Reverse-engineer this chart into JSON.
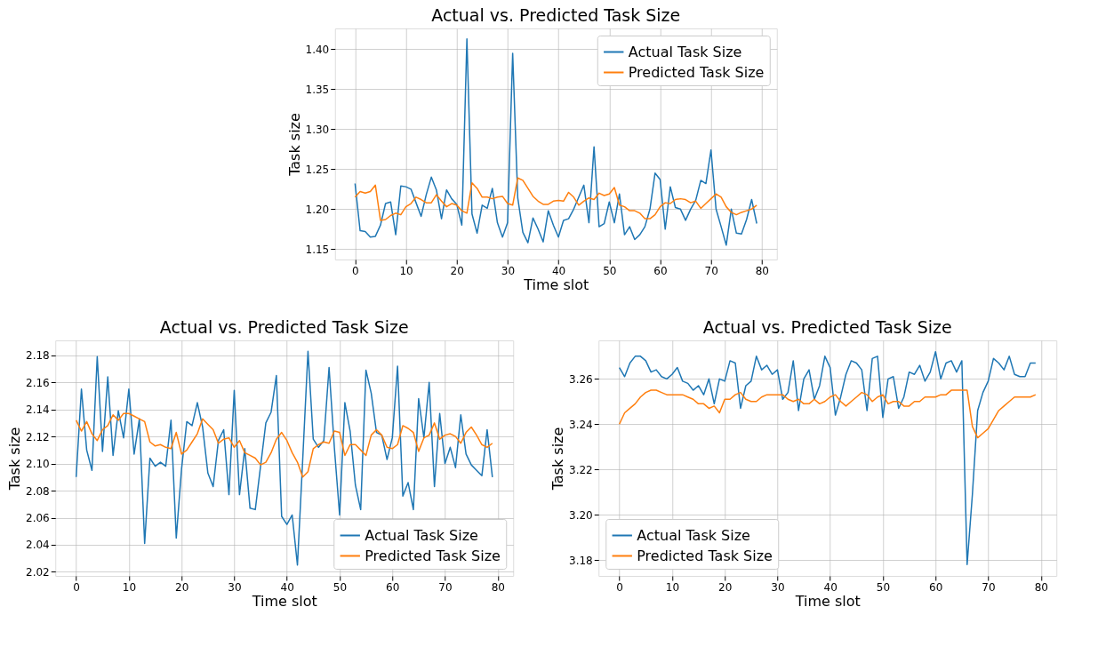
{
  "chart_data": [
    {
      "type": "line",
      "title": "Actual vs. Predicted Task Size",
      "xlabel": "Time slot",
      "ylabel": "Task size",
      "x": [
        0,
        1,
        2,
        3,
        4,
        5,
        6,
        7,
        8,
        9,
        10,
        11,
        12,
        13,
        14,
        15,
        16,
        17,
        18,
        19,
        20,
        21,
        22,
        23,
        24,
        25,
        26,
        27,
        28,
        29,
        30,
        31,
        32,
        33,
        34,
        35,
        36,
        37,
        38,
        39,
        40,
        41,
        42,
        43,
        44,
        45,
        46,
        47,
        48,
        49,
        50,
        51,
        52,
        53,
        54,
        55,
        56,
        57,
        58,
        59,
        60,
        61,
        62,
        63,
        64,
        65,
        66,
        67,
        68,
        69,
        70,
        71,
        72,
        73,
        74,
        75,
        76,
        77,
        78,
        79
      ],
      "series": [
        {
          "name": "Actual Task Size",
          "color": "#1f77b4",
          "values": [
            1.232,
            1.173,
            1.172,
            1.165,
            1.166,
            1.18,
            1.207,
            1.209,
            1.168,
            1.229,
            1.228,
            1.225,
            1.208,
            1.191,
            1.218,
            1.24,
            1.224,
            1.188,
            1.224,
            1.213,
            1.206,
            1.18,
            1.413,
            1.194,
            1.17,
            1.205,
            1.201,
            1.226,
            1.183,
            1.165,
            1.183,
            1.395,
            1.214,
            1.171,
            1.158,
            1.189,
            1.175,
            1.159,
            1.198,
            1.18,
            1.165,
            1.186,
            1.188,
            1.2,
            1.215,
            1.23,
            1.183,
            1.278,
            1.178,
            1.182,
            1.209,
            1.183,
            1.219,
            1.168,
            1.178,
            1.162,
            1.168,
            1.178,
            1.2,
            1.245,
            1.237,
            1.175,
            1.228,
            1.202,
            1.2,
            1.186,
            1.2,
            1.211,
            1.236,
            1.232,
            1.274,
            1.2,
            1.178,
            1.155,
            1.2,
            1.17,
            1.169,
            1.187,
            1.212,
            1.182
          ]
        },
        {
          "name": "Predicted Task Size",
          "color": "#ff7f0e",
          "values": [
            1.215,
            1.222,
            1.22,
            1.222,
            1.23,
            1.186,
            1.187,
            1.192,
            1.195,
            1.193,
            1.203,
            1.207,
            1.215,
            1.212,
            1.208,
            1.208,
            1.218,
            1.21,
            1.203,
            1.207,
            1.205,
            1.198,
            1.195,
            1.233,
            1.226,
            1.215,
            1.215,
            1.213,
            1.215,
            1.216,
            1.207,
            1.205,
            1.239,
            1.236,
            1.226,
            1.216,
            1.21,
            1.206,
            1.206,
            1.21,
            1.211,
            1.21,
            1.221,
            1.215,
            1.205,
            1.21,
            1.214,
            1.212,
            1.22,
            1.217,
            1.219,
            1.227,
            1.205,
            1.203,
            1.198,
            1.198,
            1.195,
            1.188,
            1.188,
            1.193,
            1.203,
            1.208,
            1.207,
            1.212,
            1.213,
            1.212,
            1.208,
            1.21,
            1.201,
            1.207,
            1.213,
            1.219,
            1.215,
            1.203,
            1.196,
            1.193,
            1.196,
            1.198,
            1.2,
            1.205
          ]
        }
      ],
      "xlim": [
        -3.95,
        82.95
      ],
      "xticks": [
        0,
        10,
        20,
        30,
        40,
        50,
        60,
        70,
        80
      ],
      "ylim": [
        1.137,
        1.426
      ],
      "yticks": [
        1.15,
        {
          "value": 1.2,
          "label": "1.20"
        },
        1.25,
        {
          "value": 1.3,
          "label": "1.30"
        },
        1.35,
        {
          "value": 1.4,
          "label": "1.40"
        }
      ],
      "grid": true,
      "legend": "top right"
    },
    {
      "type": "line",
      "title": "Actual vs. Predicted Task Size",
      "xlabel": "Time slot",
      "ylabel": "Task size",
      "x": [
        0,
        1,
        2,
        3,
        4,
        5,
        6,
        7,
        8,
        9,
        10,
        11,
        12,
        13,
        14,
        15,
        16,
        17,
        18,
        19,
        20,
        21,
        22,
        23,
        24,
        25,
        26,
        27,
        28,
        29,
        30,
        31,
        32,
        33,
        34,
        35,
        36,
        37,
        38,
        39,
        40,
        41,
        42,
        43,
        44,
        45,
        46,
        47,
        48,
        49,
        50,
        51,
        52,
        53,
        54,
        55,
        56,
        57,
        58,
        59,
        60,
        61,
        62,
        63,
        64,
        65,
        66,
        67,
        68,
        69,
        70,
        71,
        72,
        73,
        74,
        75,
        76,
        77,
        78,
        79
      ],
      "series": [
        {
          "name": "Actual Task Size",
          "color": "#1f77b4",
          "values": [
            2.09,
            2.155,
            2.11,
            2.095,
            2.179,
            2.109,
            2.164,
            2.106,
            2.139,
            2.119,
            2.155,
            2.107,
            2.133,
            2.041,
            2.104,
            2.098,
            2.101,
            2.098,
            2.132,
            2.045,
            2.096,
            2.131,
            2.128,
            2.145,
            2.127,
            2.093,
            2.083,
            2.117,
            2.125,
            2.077,
            2.154,
            2.077,
            2.111,
            2.067,
            2.066,
            2.098,
            2.13,
            2.138,
            2.165,
            2.061,
            2.055,
            2.062,
            2.025,
            2.103,
            2.183,
            2.118,
            2.112,
            2.117,
            2.171,
            2.112,
            2.062,
            2.145,
            2.124,
            2.084,
            2.066,
            2.169,
            2.152,
            2.123,
            2.121,
            2.103,
            2.119,
            2.172,
            2.076,
            2.086,
            2.066,
            2.148,
            2.119,
            2.16,
            2.083,
            2.137,
            2.1,
            2.112,
            2.097,
            2.136,
            2.107,
            2.099,
            2.095,
            2.091,
            2.125,
            2.09
          ]
        },
        {
          "name": "Predicted Task Size",
          "color": "#ff7f0e",
          "values": [
            2.132,
            2.124,
            2.131,
            2.122,
            2.117,
            2.125,
            2.128,
            2.136,
            2.132,
            2.137,
            2.137,
            2.135,
            2.133,
            2.131,
            2.116,
            2.113,
            2.114,
            2.112,
            2.111,
            2.123,
            2.107,
            2.11,
            2.116,
            2.122,
            2.133,
            2.129,
            2.125,
            2.115,
            2.118,
            2.119,
            2.112,
            2.117,
            2.108,
            2.106,
            2.104,
            2.099,
            2.101,
            2.108,
            2.118,
            2.123,
            2.117,
            2.108,
            2.101,
            2.09,
            2.094,
            2.111,
            2.114,
            2.116,
            2.115,
            2.124,
            2.123,
            2.106,
            2.114,
            2.114,
            2.11,
            2.106,
            2.121,
            2.125,
            2.121,
            2.112,
            2.111,
            2.114,
            2.128,
            2.126,
            2.123,
            2.109,
            2.119,
            2.121,
            2.13,
            2.118,
            2.121,
            2.122,
            2.12,
            2.115,
            2.123,
            2.127,
            2.121,
            2.114,
            2.112,
            2.115
          ]
        }
      ],
      "xlim": [
        -3.95,
        82.95
      ],
      "xticks": [
        0,
        10,
        20,
        30,
        40,
        50,
        60,
        70,
        80
      ],
      "ylim": [
        2.017,
        2.191
      ],
      "yticks": [
        2.02,
        2.04,
        2.06,
        2.08,
        {
          "value": 2.1,
          "label": "2.10"
        },
        2.12,
        2.14,
        2.16,
        2.18
      ],
      "grid": true,
      "legend": "bottom right"
    },
    {
      "type": "line",
      "title": "Actual vs. Predicted Task Size",
      "xlabel": "Time slot",
      "ylabel": "Task size",
      "x": [
        0,
        1,
        2,
        3,
        4,
        5,
        6,
        7,
        8,
        9,
        10,
        11,
        12,
        13,
        14,
        15,
        16,
        17,
        18,
        19,
        20,
        21,
        22,
        23,
        24,
        25,
        26,
        27,
        28,
        29,
        30,
        31,
        32,
        33,
        34,
        35,
        36,
        37,
        38,
        39,
        40,
        41,
        42,
        43,
        44,
        45,
        46,
        47,
        48,
        49,
        50,
        51,
        52,
        53,
        54,
        55,
        56,
        57,
        58,
        59,
        60,
        61,
        62,
        63,
        64,
        65,
        66,
        67,
        68,
        69,
        70,
        71,
        72,
        73,
        74,
        75,
        76,
        77,
        78,
        79
      ],
      "series": [
        {
          "name": "Actual Task Size",
          "color": "#1f77b4",
          "values": [
            3.265,
            3.261,
            3.267,
            3.27,
            3.27,
            3.268,
            3.263,
            3.264,
            3.261,
            3.26,
            3.262,
            3.265,
            3.259,
            3.258,
            3.255,
            3.257,
            3.253,
            3.26,
            3.249,
            3.26,
            3.259,
            3.268,
            3.267,
            3.247,
            3.257,
            3.259,
            3.27,
            3.264,
            3.266,
            3.262,
            3.264,
            3.251,
            3.254,
            3.268,
            3.246,
            3.26,
            3.264,
            3.251,
            3.257,
            3.27,
            3.265,
            3.244,
            3.252,
            3.262,
            3.268,
            3.267,
            3.264,
            3.246,
            3.269,
            3.27,
            3.243,
            3.26,
            3.261,
            3.247,
            3.252,
            3.263,
            3.262,
            3.266,
            3.259,
            3.263,
            3.272,
            3.26,
            3.267,
            3.268,
            3.263,
            3.268,
            3.178,
            3.209,
            3.246,
            3.254,
            3.259,
            3.269,
            3.267,
            3.264,
            3.27,
            3.262,
            3.261,
            3.261,
            3.267,
            3.267
          ]
        },
        {
          "name": "Predicted Task Size",
          "color": "#ff7f0e",
          "values": [
            3.24,
            3.245,
            3.247,
            3.249,
            3.252,
            3.254,
            3.255,
            3.255,
            3.254,
            3.253,
            3.253,
            3.253,
            3.253,
            3.252,
            3.251,
            3.249,
            3.249,
            3.247,
            3.248,
            3.245,
            3.251,
            3.251,
            3.253,
            3.254,
            3.251,
            3.25,
            3.25,
            3.252,
            3.253,
            3.253,
            3.253,
            3.253,
            3.251,
            3.25,
            3.251,
            3.249,
            3.249,
            3.251,
            3.249,
            3.25,
            3.252,
            3.253,
            3.25,
            3.248,
            3.25,
            3.252,
            3.254,
            3.253,
            3.25,
            3.252,
            3.253,
            3.249,
            3.25,
            3.25,
            3.248,
            3.248,
            3.25,
            3.25,
            3.252,
            3.252,
            3.252,
            3.253,
            3.253,
            3.255,
            3.255,
            3.255,
            3.255,
            3.239,
            3.234,
            3.236,
            3.238,
            3.242,
            3.246,
            3.248,
            3.25,
            3.252,
            3.252,
            3.252,
            3.252,
            3.253
          ]
        }
      ],
      "xlim": [
        -3.95,
        82.95
      ],
      "xticks": [
        0,
        10,
        20,
        30,
        40,
        50,
        60,
        70,
        80
      ],
      "ylim": [
        3.173,
        3.277
      ],
      "yticks": [
        3.18,
        {
          "value": 3.2,
          "label": "3.20"
        },
        3.22,
        3.24,
        3.26
      ],
      "grid": true,
      "legend": "bottom left"
    }
  ]
}
